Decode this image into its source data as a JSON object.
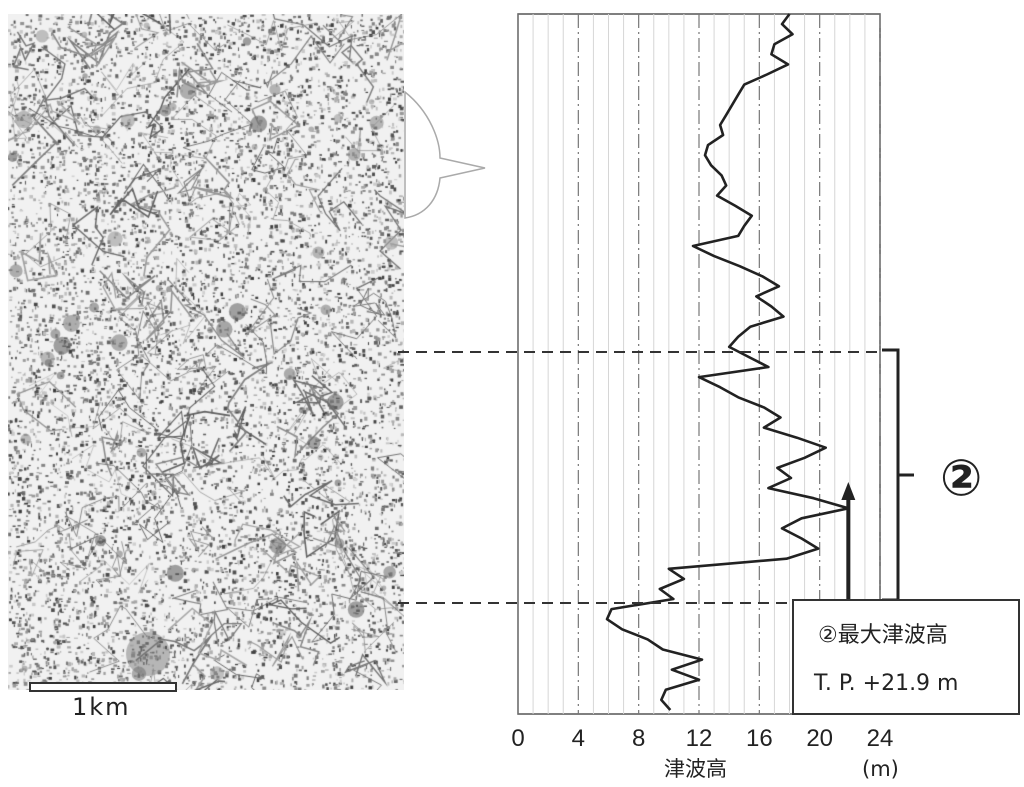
{
  "map": {
    "scale_label": "1km"
  },
  "chart_data": {
    "type": "line",
    "orientation": "vertical-profile",
    "xlabel": "津波高",
    "xunit": "(m)",
    "x_ticks": [
      0,
      4,
      8,
      12,
      16,
      20,
      24
    ],
    "xlim": [
      0,
      24
    ],
    "grid": true,
    "series": [
      {
        "values": [
          18,
          17.5,
          18.2,
          17,
          16.8,
          17.9,
          16.5,
          15,
          14.6,
          14.2,
          13.8,
          13.4,
          13.6,
          12.6,
          12.4,
          12.8,
          13.5,
          13.8,
          13.2,
          14.4,
          15.5,
          15.0,
          14.6,
          11.6,
          13.0,
          14.7,
          16.2,
          17.3,
          15.8,
          16.8,
          17.6,
          15.4,
          14.6,
          14.0,
          15.3,
          16.6,
          12.0,
          13.4,
          14.6,
          16.3,
          17.4,
          16.3,
          18.5,
          20.4,
          19.0,
          17.2,
          18.1,
          16.6,
          19.6,
          21.9,
          18.8,
          17.5,
          18.8,
          19.9,
          17.8,
          10.0,
          11.0,
          9.4,
          10.3,
          6.2,
          5.9,
          6.9,
          8.6,
          9.6,
          12.2,
          10.2,
          12.0,
          9.8,
          9.5,
          10.1
        ]
      }
    ],
    "annotation": {
      "section_label": "②",
      "callout_title": "②最大津波高",
      "callout_value": "T. P. +21.9 m",
      "max_value": 21.9
    }
  }
}
